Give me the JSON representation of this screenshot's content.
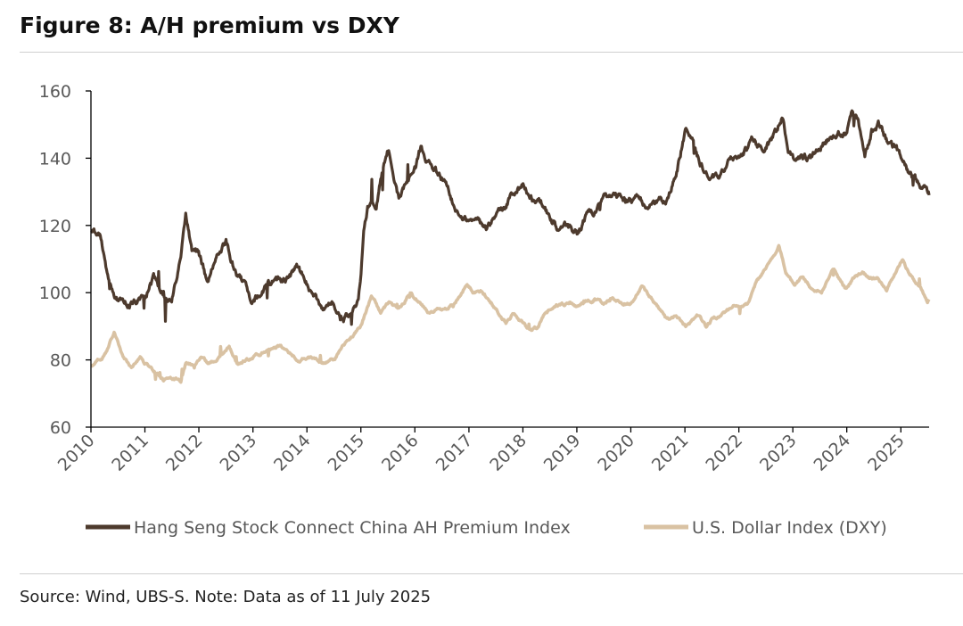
{
  "figure": {
    "title": "Figure 8: A/H premium vs DXY",
    "footnote": "Source: Wind, UBS-S. Note: Data as of 11 July 2025"
  },
  "chart_data": {
    "type": "line",
    "title": "",
    "xlabel": "",
    "ylabel": "",
    "x_axis": {
      "type": "date",
      "range": [
        "2010-01-01",
        "2025-07-11"
      ],
      "tick_labels": [
        "2010",
        "2011",
        "2012",
        "2013",
        "2014",
        "2015",
        "2016",
        "2017",
        "2018",
        "2019",
        "2020",
        "2021",
        "2022",
        "2023",
        "2024",
        "2025"
      ]
    },
    "y_axis": {
      "range": [
        60,
        160
      ],
      "ticks": [
        60,
        80,
        100,
        120,
        140,
        160
      ]
    },
    "grid": false,
    "legend_position": "bottom",
    "series": [
      {
        "name": "Hang Seng Stock Connect China AH Premium Index",
        "color": "#4d3a2d",
        "data": [
          [
            "2010-01-04",
            118
          ],
          [
            "2010-03-01",
            117
          ],
          [
            "2010-05-03",
            103
          ],
          [
            "2010-07-01",
            98
          ],
          [
            "2010-09-01",
            97
          ],
          [
            "2010-11-01",
            97
          ],
          [
            "2011-01-03",
            98
          ],
          [
            "2011-03-01",
            104
          ],
          [
            "2011-05-03",
            100
          ],
          [
            "2011-07-01",
            98
          ],
          [
            "2011-09-01",
            110
          ],
          [
            "2011-10-04",
            123
          ],
          [
            "2011-11-15",
            113
          ],
          [
            "2011-12-30",
            112
          ],
          [
            "2012-03-01",
            103
          ],
          [
            "2012-05-02",
            110
          ],
          [
            "2012-07-03",
            115
          ],
          [
            "2012-09-03",
            106
          ],
          [
            "2012-11-01",
            103
          ],
          [
            "2013-01-02",
            97
          ],
          [
            "2013-03-01",
            100
          ],
          [
            "2013-05-02",
            103
          ],
          [
            "2013-07-02",
            104
          ],
          [
            "2013-09-02",
            104
          ],
          [
            "2013-11-01",
            107
          ],
          [
            "2014-01-02",
            103
          ],
          [
            "2014-03-03",
            98
          ],
          [
            "2014-05-02",
            95
          ],
          [
            "2014-07-02",
            97
          ],
          [
            "2014-09-01",
            93
          ],
          [
            "2014-11-03",
            92
          ],
          [
            "2014-12-15",
            98
          ],
          [
            "2015-01-02",
            105
          ],
          [
            "2015-01-20",
            118
          ],
          [
            "2015-02-16",
            125
          ],
          [
            "2015-03-16",
            126
          ],
          [
            "2015-04-15",
            124
          ],
          [
            "2015-05-15",
            133
          ],
          [
            "2015-06-15",
            140
          ],
          [
            "2015-07-08",
            143
          ],
          [
            "2015-08-17",
            133
          ],
          [
            "2015-09-15",
            128
          ],
          [
            "2015-11-02",
            133
          ],
          [
            "2016-01-04",
            137
          ],
          [
            "2016-02-15",
            144
          ],
          [
            "2016-03-15",
            138
          ],
          [
            "2016-05-03",
            137
          ],
          [
            "2016-07-04",
            134
          ],
          [
            "2016-09-01",
            128
          ],
          [
            "2016-11-01",
            123
          ],
          [
            "2017-01-03",
            122
          ],
          [
            "2017-03-01",
            122
          ],
          [
            "2017-05-02",
            118
          ],
          [
            "2017-07-03",
            124
          ],
          [
            "2017-09-01",
            126
          ],
          [
            "2017-11-01",
            130
          ],
          [
            "2018-01-02",
            132
          ],
          [
            "2018-03-01",
            128
          ],
          [
            "2018-05-02",
            127
          ],
          [
            "2018-07-03",
            122
          ],
          [
            "2018-09-03",
            118
          ],
          [
            "2018-11-01",
            120
          ],
          [
            "2019-01-02",
            117
          ],
          [
            "2019-03-01",
            123
          ],
          [
            "2019-05-02",
            124
          ],
          [
            "2019-07-02",
            128
          ],
          [
            "2019-09-02",
            130
          ],
          [
            "2019-11-01",
            128
          ],
          [
            "2020-01-02",
            127
          ],
          [
            "2020-03-02",
            128
          ],
          [
            "2020-05-04",
            125
          ],
          [
            "2020-07-02",
            127
          ],
          [
            "2020-09-01",
            128
          ],
          [
            "2020-11-02",
            135
          ],
          [
            "2021-01-04",
            148
          ],
          [
            "2021-02-15",
            145
          ],
          [
            "2021-04-01",
            140
          ],
          [
            "2021-06-01",
            135
          ],
          [
            "2021-08-02",
            134
          ],
          [
            "2021-10-04",
            138
          ],
          [
            "2021-12-01",
            140
          ],
          [
            "2022-02-01",
            142
          ],
          [
            "2022-04-01",
            145
          ],
          [
            "2022-06-01",
            143
          ],
          [
            "2022-08-01",
            145
          ],
          [
            "2022-09-15",
            148
          ],
          [
            "2022-10-24",
            152
          ],
          [
            "2022-12-01",
            143
          ],
          [
            "2023-01-16",
            138
          ],
          [
            "2023-03-01",
            140
          ],
          [
            "2023-05-02",
            140
          ],
          [
            "2023-07-03",
            143
          ],
          [
            "2023-09-01",
            146
          ],
          [
            "2023-11-01",
            147
          ],
          [
            "2024-01-02",
            148
          ],
          [
            "2024-02-05",
            155
          ],
          [
            "2024-03-15",
            152
          ],
          [
            "2024-05-02",
            140
          ],
          [
            "2024-06-17",
            148
          ],
          [
            "2024-08-01",
            150
          ],
          [
            "2024-10-02",
            145
          ],
          [
            "2024-12-02",
            143
          ],
          [
            "2025-01-15",
            138
          ],
          [
            "2025-03-03",
            135
          ],
          [
            "2025-04-15",
            133
          ],
          [
            "2025-06-02",
            131
          ],
          [
            "2025-07-11",
            129
          ]
        ]
      },
      {
        "name": "U.S. Dollar Index (DXY)",
        "color": "#d9c2a3",
        "data": [
          [
            "2010-01-04",
            78
          ],
          [
            "2010-02-15",
            80
          ],
          [
            "2010-04-01",
            81
          ],
          [
            "2010-06-07",
            88
          ],
          [
            "2010-08-02",
            81
          ],
          [
            "2010-10-01",
            78
          ],
          [
            "2010-11-30",
            81
          ],
          [
            "2011-01-03",
            79
          ],
          [
            "2011-03-01",
            77
          ],
          [
            "2011-05-03",
            74
          ],
          [
            "2011-07-01",
            74
          ],
          [
            "2011-09-01",
            74
          ],
          [
            "2011-10-04",
            79
          ],
          [
            "2011-12-01",
            78
          ],
          [
            "2012-01-16",
            81
          ],
          [
            "2012-03-01",
            79
          ],
          [
            "2012-05-02",
            80
          ],
          [
            "2012-07-24",
            84
          ],
          [
            "2012-09-14",
            79
          ],
          [
            "2012-12-03",
            80
          ],
          [
            "2013-03-01",
            82
          ],
          [
            "2013-05-02",
            83
          ],
          [
            "2013-07-09",
            84
          ],
          [
            "2013-09-02",
            82
          ],
          [
            "2013-11-01",
            80
          ],
          [
            "2014-01-02",
            81
          ],
          [
            "2014-03-03",
            80
          ],
          [
            "2014-05-02",
            79
          ],
          [
            "2014-07-01",
            80
          ],
          [
            "2014-09-01",
            84
          ],
          [
            "2014-11-03",
            87
          ],
          [
            "2015-01-02",
            90
          ],
          [
            "2015-03-13",
            99
          ],
          [
            "2015-05-15",
            94
          ],
          [
            "2015-07-15",
            97
          ],
          [
            "2015-09-15",
            95
          ],
          [
            "2015-12-01",
            100
          ],
          [
            "2016-02-01",
            97
          ],
          [
            "2016-04-01",
            94
          ],
          [
            "2016-06-01",
            95
          ],
          [
            "2016-08-01",
            95
          ],
          [
            "2016-10-03",
            97
          ],
          [
            "2016-12-20",
            103
          ],
          [
            "2017-02-01",
            100
          ],
          [
            "2017-04-03",
            100
          ],
          [
            "2017-06-01",
            97
          ],
          [
            "2017-08-01",
            93
          ],
          [
            "2017-09-08",
            91
          ],
          [
            "2017-11-01",
            94
          ],
          [
            "2018-01-02",
            91
          ],
          [
            "2018-02-15",
            89
          ],
          [
            "2018-04-16",
            90
          ],
          [
            "2018-06-01",
            94
          ],
          [
            "2018-08-15",
            96
          ],
          [
            "2018-11-12",
            97
          ],
          [
            "2019-01-02",
            96
          ],
          [
            "2019-03-01",
            97
          ],
          [
            "2019-05-02",
            98
          ],
          [
            "2019-07-01",
            97
          ],
          [
            "2019-09-02",
            98
          ],
          [
            "2019-11-01",
            97
          ],
          [
            "2020-01-02",
            97
          ],
          [
            "2020-03-19",
            102
          ],
          [
            "2020-05-04",
            99
          ],
          [
            "2020-07-01",
            96
          ],
          [
            "2020-09-01",
            92
          ],
          [
            "2020-11-02",
            93
          ],
          [
            "2021-01-06",
            90
          ],
          [
            "2021-03-31",
            93
          ],
          [
            "2021-05-25",
            90
          ],
          [
            "2021-07-01",
            92
          ],
          [
            "2021-09-01",
            93
          ],
          [
            "2021-11-24",
            96
          ],
          [
            "2022-01-03",
            96
          ],
          [
            "2022-03-01",
            97
          ],
          [
            "2022-05-02",
            103
          ],
          [
            "2022-07-14",
            108
          ],
          [
            "2022-09-28",
            114
          ],
          [
            "2022-11-15",
            106
          ],
          [
            "2023-01-16",
            102
          ],
          [
            "2023-03-08",
            105
          ],
          [
            "2023-05-02",
            101
          ],
          [
            "2023-07-14",
            100
          ],
          [
            "2023-10-03",
            107
          ],
          [
            "2023-12-27",
            101
          ],
          [
            "2024-02-14",
            104
          ],
          [
            "2024-04-16",
            106
          ],
          [
            "2024-06-03",
            104
          ],
          [
            "2024-08-01",
            104
          ],
          [
            "2024-09-27",
            101
          ],
          [
            "2024-11-01",
            104
          ],
          [
            "2025-01-13",
            110
          ],
          [
            "2025-02-14",
            107
          ],
          [
            "2025-04-01",
            104
          ],
          [
            "2025-05-15",
            101
          ],
          [
            "2025-06-30",
            97
          ],
          [
            "2025-07-11",
            98
          ]
        ]
      }
    ]
  }
}
